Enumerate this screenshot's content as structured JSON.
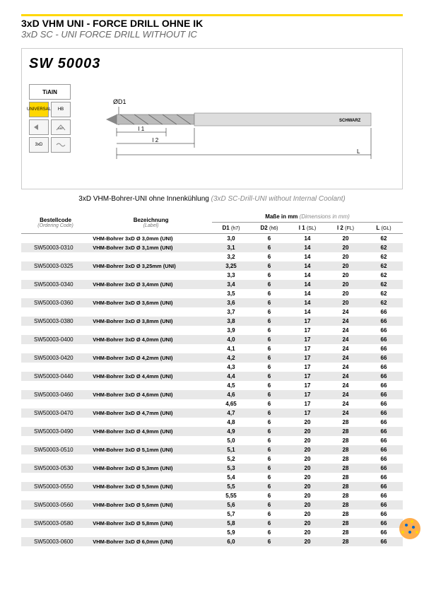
{
  "header": {
    "title_de": "3xD VHM UNI - FORCE DRILL OHNE IK",
    "title_en": "3xD SC - UNI FORCE DRILL WITHOUT IC"
  },
  "diagram": {
    "product_code": "SW 50003",
    "coating": "TiAlN",
    "badges": {
      "universal": "UNIVERSAL",
      "hb": "HB",
      "d1": "ØD1",
      "l1": "l 1",
      "l2": "l 2",
      "L": "L",
      "three_xd": "3xD"
    },
    "brand": "SCHWARZ"
  },
  "subtitle": {
    "de": "3xD VHM-Bohrer-UNI ohne Innenkühlung",
    "en": "(3xD SC-Drill-UNI without Internal Coolant)"
  },
  "table": {
    "headers": {
      "code": "Bestellcode",
      "code_sub": "(Ordering Code)",
      "label": "Bezeichnung",
      "label_sub": "(Label)",
      "dims": "Maße in mm",
      "dims_sub": "(Dimensions in mm)",
      "d1": "D1",
      "d1_sub": "(h7)",
      "d2": "D2",
      "d2_sub": "(h6)",
      "l1": "l 1",
      "l1_sub": "(SL)",
      "l2": "l 2",
      "l2_sub": "(FL)",
      "L": "L",
      "L_sub": "(GL)"
    },
    "rows": [
      {
        "code": "",
        "label": "VHM-Bohrer 3xD Ø 3,0mm (UNI)",
        "d1": "3,0",
        "d2": "6",
        "l1": "14",
        "l2": "20",
        "L": "62",
        "shaded": false
      },
      {
        "code": "SW50003-0310",
        "label": "VHM-Bohrer 3xD Ø 3,1mm (UNI)",
        "d1": "3,1",
        "d2": "6",
        "l1": "14",
        "l2": "20",
        "L": "62",
        "shaded": true
      },
      {
        "code": "",
        "label": "",
        "d1": "3,2",
        "d2": "6",
        "l1": "14",
        "l2": "20",
        "L": "62",
        "shaded": false
      },
      {
        "code": "SW50003-0325",
        "label": "VHM-Bohrer 3xD Ø 3,25mm (UNI)",
        "d1": "3,25",
        "d2": "6",
        "l1": "14",
        "l2": "20",
        "L": "62",
        "shaded": true
      },
      {
        "code": "",
        "label": "",
        "d1": "3,3",
        "d2": "6",
        "l1": "14",
        "l2": "20",
        "L": "62",
        "shaded": false
      },
      {
        "code": "SW50003-0340",
        "label": "VHM-Bohrer 3xD Ø 3,4mm (UNI)",
        "d1": "3,4",
        "d2": "6",
        "l1": "14",
        "l2": "20",
        "L": "62",
        "shaded": true
      },
      {
        "code": "",
        "label": "",
        "d1": "3,5",
        "d2": "6",
        "l1": "14",
        "l2": "20",
        "L": "62",
        "shaded": false
      },
      {
        "code": "SW50003-0360",
        "label": "VHM-Bohrer 3xD Ø 3,6mm (UNI)",
        "d1": "3,6",
        "d2": "6",
        "l1": "14",
        "l2": "20",
        "L": "62",
        "shaded": true
      },
      {
        "code": "",
        "label": "",
        "d1": "3,7",
        "d2": "6",
        "l1": "14",
        "l2": "24",
        "L": "66",
        "shaded": false
      },
      {
        "code": "SW50003-0380",
        "label": "VHM-Bohrer 3xD Ø 3,8mm (UNI)",
        "d1": "3,8",
        "d2": "6",
        "l1": "17",
        "l2": "24",
        "L": "66",
        "shaded": true
      },
      {
        "code": "",
        "label": "",
        "d1": "3,9",
        "d2": "6",
        "l1": "17",
        "l2": "24",
        "L": "66",
        "shaded": false
      },
      {
        "code": "SW50003-0400",
        "label": "VHM-Bohrer 3xD Ø 4,0mm (UNI)",
        "d1": "4,0",
        "d2": "6",
        "l1": "17",
        "l2": "24",
        "L": "66",
        "shaded": true
      },
      {
        "code": "",
        "label": "",
        "d1": "4,1",
        "d2": "6",
        "l1": "17",
        "l2": "24",
        "L": "66",
        "shaded": false
      },
      {
        "code": "SW50003-0420",
        "label": "VHM-Bohrer 3xD Ø 4,2mm (UNI)",
        "d1": "4,2",
        "d2": "6",
        "l1": "17",
        "l2": "24",
        "L": "66",
        "shaded": true
      },
      {
        "code": "",
        "label": "",
        "d1": "4,3",
        "d2": "6",
        "l1": "17",
        "l2": "24",
        "L": "66",
        "shaded": false
      },
      {
        "code": "SW50003-0440",
        "label": "VHM-Bohrer 3xD Ø 4,4mm (UNI)",
        "d1": "4,4",
        "d2": "6",
        "l1": "17",
        "l2": "24",
        "L": "66",
        "shaded": true
      },
      {
        "code": "",
        "label": "",
        "d1": "4,5",
        "d2": "6",
        "l1": "17",
        "l2": "24",
        "L": "66",
        "shaded": false
      },
      {
        "code": "SW50003-0460",
        "label": "VHM-Bohrer 3xD Ø 4,6mm (UNI)",
        "d1": "4,6",
        "d2": "6",
        "l1": "17",
        "l2": "24",
        "L": "66",
        "shaded": true
      },
      {
        "code": "",
        "label": "",
        "d1": "4,65",
        "d2": "6",
        "l1": "17",
        "l2": "24",
        "L": "66",
        "shaded": false
      },
      {
        "code": "SW50003-0470",
        "label": "VHM-Bohrer 3xD Ø 4,7mm (UNI)",
        "d1": "4,7",
        "d2": "6",
        "l1": "17",
        "l2": "24",
        "L": "66",
        "shaded": true
      },
      {
        "code": "",
        "label": "",
        "d1": "4,8",
        "d2": "6",
        "l1": "20",
        "l2": "28",
        "L": "66",
        "shaded": false
      },
      {
        "code": "SW50003-0490",
        "label": "VHM-Bohrer 3xD Ø 4,9mm (UNI)",
        "d1": "4,9",
        "d2": "6",
        "l1": "20",
        "l2": "28",
        "L": "66",
        "shaded": true
      },
      {
        "code": "",
        "label": "",
        "d1": "5,0",
        "d2": "6",
        "l1": "20",
        "l2": "28",
        "L": "66",
        "shaded": false
      },
      {
        "code": "SW50003-0510",
        "label": "VHM-Bohrer 3xD Ø 5,1mm (UNI)",
        "d1": "5,1",
        "d2": "6",
        "l1": "20",
        "l2": "28",
        "L": "66",
        "shaded": true
      },
      {
        "code": "",
        "label": "",
        "d1": "5,2",
        "d2": "6",
        "l1": "20",
        "l2": "28",
        "L": "66",
        "shaded": false
      },
      {
        "code": "SW50003-0530",
        "label": "VHM-Bohrer 3xD Ø 5,3mm (UNI)",
        "d1": "5,3",
        "d2": "6",
        "l1": "20",
        "l2": "28",
        "L": "66",
        "shaded": true
      },
      {
        "code": "",
        "label": "",
        "d1": "5,4",
        "d2": "6",
        "l1": "20",
        "l2": "28",
        "L": "66",
        "shaded": false
      },
      {
        "code": "SW50003-0550",
        "label": "VHM-Bohrer 3xD Ø 5,5mm (UNI)",
        "d1": "5,5",
        "d2": "6",
        "l1": "20",
        "l2": "28",
        "L": "66",
        "shaded": true
      },
      {
        "code": "",
        "label": "",
        "d1": "5,55",
        "d2": "6",
        "l1": "20",
        "l2": "28",
        "L": "66",
        "shaded": false
      },
      {
        "code": "SW50003-0560",
        "label": "VHM-Bohrer 3xD Ø 5,6mm (UNI)",
        "d1": "5,6",
        "d2": "6",
        "l1": "20",
        "l2": "28",
        "L": "66",
        "shaded": true
      },
      {
        "code": "",
        "label": "",
        "d1": "5,7",
        "d2": "6",
        "l1": "20",
        "l2": "28",
        "L": "66",
        "shaded": false
      },
      {
        "code": "SW50003-0580",
        "label": "VHM-Bohrer 3xD Ø 5,8mm (UNI)",
        "d1": "5,8",
        "d2": "6",
        "l1": "20",
        "l2": "28",
        "L": "66",
        "shaded": true
      },
      {
        "code": "",
        "label": "",
        "d1": "5,9",
        "d2": "6",
        "l1": "20",
        "l2": "28",
        "L": "66",
        "shaded": false
      },
      {
        "code": "SW50003-0600",
        "label": "VHM-Bohrer 3xD Ø 6,0mm (UNI)",
        "d1": "6,0",
        "d2": "6",
        "l1": "20",
        "l2": "28",
        "L": "66",
        "shaded": true
      }
    ]
  },
  "colors": {
    "yellow": "#ffd700",
    "shaded_row": "#e8e8e8",
    "gray_text": "#888888"
  }
}
